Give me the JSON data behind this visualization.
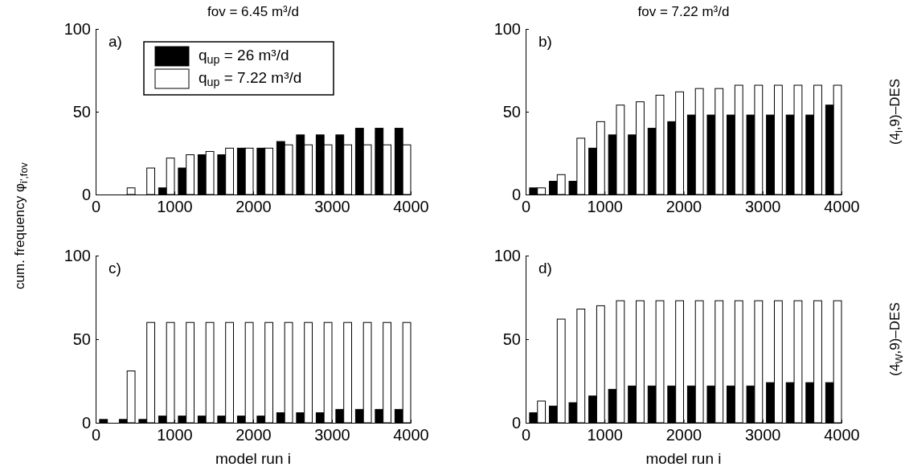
{
  "chart_data": [
    {
      "type": "bar",
      "title": "fov = 6.45 m³/d",
      "ylabel": "cum. frequency φ$_{i',fov}$",
      "annotations": [
        "a)"
      ],
      "x": [
        150,
        400,
        650,
        900,
        1150,
        1400,
        1650,
        1900,
        2150,
        2400,
        2650,
        2900,
        3150,
        3400,
        3650,
        3900
      ],
      "xlim": [
        0,
        4000
      ],
      "xticks": [
        0,
        1000,
        2000,
        3000,
        4000
      ],
      "ylim": [
        0,
        100
      ],
      "yticks": [
        0,
        50,
        100
      ],
      "legend": "top",
      "series": [
        {
          "name": "q$_{up}$ = 26 m³/d",
          "color": "#000000",
          "values": [
            0,
            0,
            0,
            4,
            16,
            24,
            24,
            28,
            28,
            32,
            36,
            36,
            36,
            40,
            40,
            40
          ]
        },
        {
          "name": "q$_{up}$ = 7.22 m³/d",
          "color": "#ffffff",
          "values": [
            0,
            4,
            16,
            22,
            24,
            26,
            28,
            28,
            28,
            30,
            30,
            30,
            30,
            30,
            30,
            30
          ]
        }
      ]
    },
    {
      "type": "bar",
      "title": "fov = 7.22 m³/d",
      "y2label": "(4$_{l}$,9)–DES",
      "annotations": [
        "b)"
      ],
      "x": [
        150,
        400,
        650,
        900,
        1150,
        1400,
        1650,
        1900,
        2150,
        2400,
        2650,
        2900,
        3150,
        3400,
        3650,
        3900
      ],
      "xlim": [
        0,
        4000
      ],
      "xticks": [
        0,
        1000,
        2000,
        3000,
        4000
      ],
      "ylim": [
        0,
        100
      ],
      "yticks": [
        0,
        50,
        100
      ],
      "series": [
        {
          "color": "#000000",
          "values": [
            4,
            8,
            8,
            28,
            36,
            36,
            40,
            44,
            48,
            48,
            48,
            48,
            48,
            48,
            48,
            54
          ]
        },
        {
          "color": "#ffffff",
          "values": [
            4,
            12,
            34,
            44,
            54,
            56,
            60,
            62,
            64,
            64,
            66,
            66,
            66,
            66,
            66,
            66
          ]
        }
      ]
    },
    {
      "type": "bar",
      "xlabel": "model run i",
      "annotations": [
        "c)"
      ],
      "x": [
        150,
        400,
        650,
        900,
        1150,
        1400,
        1650,
        1900,
        2150,
        2400,
        2650,
        2900,
        3150,
        3400,
        3650,
        3900
      ],
      "xlim": [
        0,
        4000
      ],
      "xticks": [
        0,
        1000,
        2000,
        3000,
        4000
      ],
      "ylim": [
        0,
        100
      ],
      "yticks": [
        0,
        50,
        100
      ],
      "series": [
        {
          "color": "#000000",
          "values": [
            2,
            2,
            2,
            4,
            4,
            4,
            4,
            4,
            4,
            6,
            6,
            6,
            8,
            8,
            8,
            8
          ]
        },
        {
          "color": "#ffffff",
          "values": [
            0,
            31,
            60,
            60,
            60,
            60,
            60,
            60,
            60,
            60,
            60,
            60,
            60,
            60,
            60,
            60
          ]
        }
      ]
    },
    {
      "type": "bar",
      "xlabel": "model run i",
      "y2label": "(4$_{W}$,9)–DES",
      "annotations": [
        "d)"
      ],
      "x": [
        150,
        400,
        650,
        900,
        1150,
        1400,
        1650,
        1900,
        2150,
        2400,
        2650,
        2900,
        3150,
        3400,
        3650,
        3900
      ],
      "xlim": [
        0,
        4000
      ],
      "xticks": [
        0,
        1000,
        2000,
        3000,
        4000
      ],
      "ylim": [
        0,
        100
      ],
      "yticks": [
        0,
        50,
        100
      ],
      "series": [
        {
          "color": "#000000",
          "values": [
            6,
            10,
            12,
            16,
            20,
            22,
            22,
            22,
            22,
            22,
            22,
            22,
            24,
            24,
            24,
            24
          ]
        },
        {
          "color": "#ffffff",
          "values": [
            13,
            62,
            68,
            70,
            73,
            73,
            73,
            73,
            73,
            73,
            73,
            73,
            73,
            73,
            73,
            73
          ]
        }
      ]
    }
  ]
}
